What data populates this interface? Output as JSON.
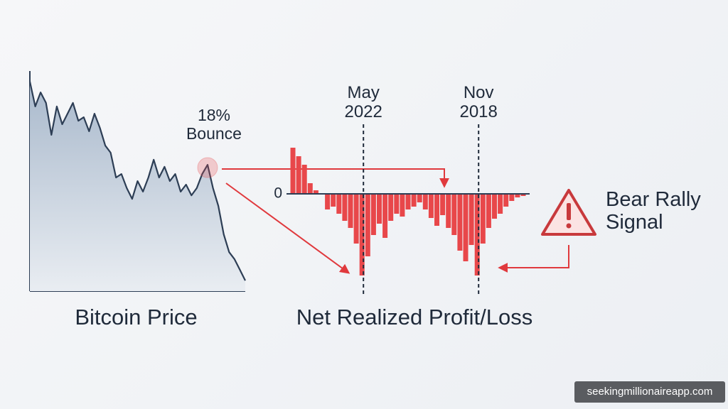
{
  "chart_data": [
    {
      "type": "area",
      "title": "Bitcoin Price",
      "categories": [
        null,
        null,
        null,
        null,
        null,
        null,
        null,
        null,
        null,
        null,
        null,
        null,
        null,
        null,
        null,
        null,
        null,
        null,
        null,
        null,
        null,
        null,
        null,
        null,
        null,
        null,
        null,
        null,
        null,
        null,
        null,
        null,
        null,
        null,
        null,
        null,
        null,
        null,
        null,
        null,
        null
      ],
      "values": [
        95.2,
        83.9,
        90.3,
        85.5,
        71,
        83.9,
        75.8,
        80.6,
        85.5,
        77.4,
        79,
        72.6,
        80.6,
        74.2,
        66.1,
        62.9,
        51.6,
        53.2,
        46.8,
        41.9,
        50,
        45.2,
        51.6,
        59.7,
        51.6,
        56.5,
        50,
        53.2,
        45.2,
        48.4,
        43.5,
        46.8,
        53.2,
        57.4,
        46.8,
        38.7,
        25.8,
        17.7,
        14.5,
        9.7,
        4.8
      ],
      "ylim": [
        0,
        100
      ],
      "color": "#2d3e55",
      "annotation": "18% Bounce"
    },
    {
      "type": "bar",
      "title": "Net Realized Profit/Loss",
      "categories": [
        null,
        null,
        null,
        null,
        null,
        null,
        null,
        null,
        null,
        null,
        null,
        null,
        "May 2022",
        null,
        null,
        null,
        null,
        null,
        null,
        null,
        null,
        null,
        null,
        null,
        null,
        null,
        null,
        null,
        null,
        null,
        null,
        null,
        "Nov 2018",
        null,
        null,
        null,
        null,
        null,
        null,
        null,
        null
      ],
      "values": [
        65,
        53,
        41,
        15,
        5,
        0,
        -22,
        -18,
        -28,
        -38,
        -48,
        -70,
        -115,
        -88,
        -58,
        -42,
        -62,
        -38,
        -28,
        -32,
        -22,
        -18,
        -12,
        -22,
        -34,
        -45,
        -30,
        -48,
        -58,
        -80,
        -95,
        -72,
        -115,
        -70,
        -48,
        -35,
        -28,
        -18,
        -10,
        -5,
        -3
      ],
      "ylim": [
        -120,
        75
      ],
      "yticks": [
        0
      ],
      "color": "#e8474a"
    }
  ],
  "callout": "Bear Rally Signal",
  "watermark": "seekingmillionaireapp.com"
}
